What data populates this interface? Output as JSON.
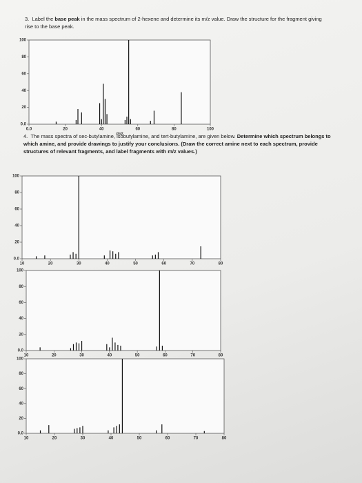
{
  "questions": [
    {
      "number": "3.",
      "parts": [
        "Label the ",
        "base peak",
        " in the mass spectrum of 2-hexene and determine its m/z value. Draw the structure for the fragment giving rise to the base peak."
      ]
    },
    {
      "number": "4.",
      "parts": [
        "The mass spectra of sec-butylamine, isobutylamine, and tert-butylamine, are given below. ",
        "Determine which spectrum belongs to which amine, and provide drawings to justify your conclusions. (Draw the correct amine next to each spectrum, provide structures of relevant fragments, and label fragments with m/z values.)"
      ]
    }
  ],
  "chart_data": [
    {
      "type": "bar",
      "xlabel": "m/z",
      "color": "#111",
      "x": [
        15,
        26,
        27,
        29,
        39,
        40,
        41,
        42,
        43,
        53,
        54,
        55,
        56,
        67,
        69,
        84
      ],
      "values": [
        3,
        5,
        18,
        14,
        25,
        6,
        48,
        30,
        12,
        5,
        9,
        100,
        6,
        4,
        16,
        38
      ],
      "xlim": [
        0,
        100
      ],
      "ylim": [
        0,
        100
      ],
      "xticks": [
        {
          "value": 0,
          "label": "0.0"
        },
        20,
        40,
        60,
        80,
        100
      ],
      "yticks": [
        {
          "value": 0,
          "label": "0.0"
        },
        20,
        40,
        60,
        80,
        100
      ]
    },
    {
      "type": "bar",
      "color": "#111",
      "x": [
        15,
        18,
        27,
        28,
        29,
        30,
        39,
        41,
        42,
        43,
        44,
        56,
        57,
        58,
        73
      ],
      "values": [
        3,
        4,
        5,
        8,
        6,
        100,
        4,
        10,
        9,
        6,
        8,
        4,
        5,
        8,
        15
      ],
      "xlim": [
        10,
        80
      ],
      "ylim": [
        0,
        100
      ],
      "xticks": [
        10,
        20,
        30,
        40,
        50,
        60,
        70,
        80
      ],
      "yticks": [
        {
          "value": 0,
          "label": "0.0"
        },
        20,
        40,
        60,
        80,
        100
      ]
    },
    {
      "type": "bar",
      "color": "#111",
      "x": [
        15,
        26,
        27,
        28,
        29,
        30,
        39,
        40,
        41,
        42,
        43,
        44,
        57,
        58,
        59
      ],
      "values": [
        4,
        3,
        8,
        10,
        9,
        12,
        8,
        4,
        16,
        10,
        7,
        6,
        5,
        100,
        6
      ],
      "xlim": [
        10,
        80
      ],
      "ylim": [
        0,
        100
      ],
      "xticks": [
        10,
        20,
        30,
        40,
        50,
        60,
        70,
        80
      ],
      "yticks": [
        {
          "value": 0,
          "label": "0.0"
        },
        20,
        40,
        60,
        80,
        100
      ]
    },
    {
      "type": "bar",
      "color": "#111",
      "x": [
        15,
        18,
        27,
        28,
        29,
        30,
        39,
        41,
        42,
        43,
        44,
        56,
        58,
        73
      ],
      "values": [
        4,
        11,
        6,
        7,
        8,
        10,
        4,
        8,
        10,
        12,
        100,
        4,
        12,
        3
      ],
      "xlim": [
        10,
        80
      ],
      "ylim": [
        0,
        100
      ],
      "xticks": [
        10,
        20,
        30,
        40,
        50,
        60,
        70,
        80
      ],
      "yticks": [
        {
          "value": 0,
          "label": "0.0"
        },
        20,
        40,
        60,
        80,
        100
      ]
    }
  ]
}
